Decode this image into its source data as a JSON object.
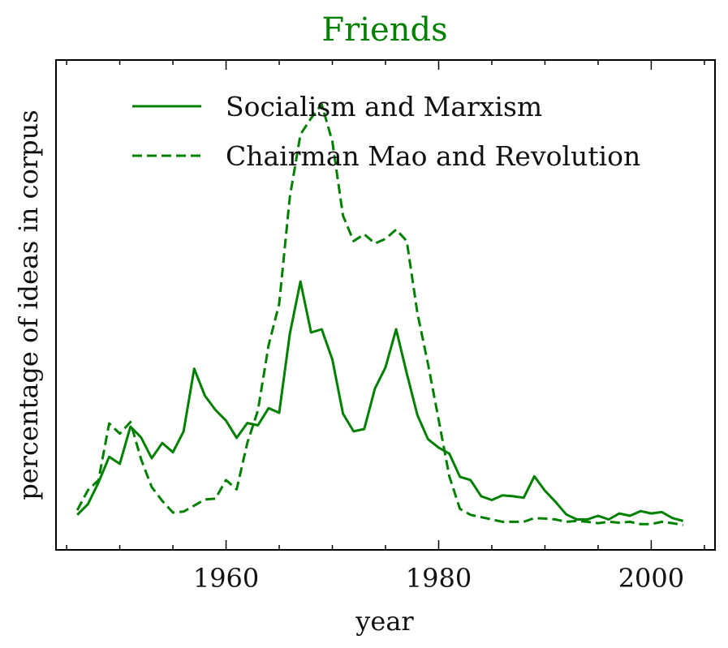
{
  "chart_data": {
    "type": "line",
    "title": "Friends",
    "xlabel": "year",
    "ylabel": "percentage of ideas in corpus",
    "xlim": [
      1944,
      2006
    ],
    "ylim": [
      0,
      1
    ],
    "xticks": [
      "1960",
      "1980",
      "2000"
    ],
    "xtick_values": [
      1960,
      1980,
      2000
    ],
    "grid": false,
    "legend_position": "top-center",
    "color": "#008000",
    "series": [
      {
        "name": "Socialism and Marxism",
        "style": "solid",
        "x": [
          1946,
          1947,
          1948,
          1949,
          1950,
          1951,
          1952,
          1953,
          1954,
          1955,
          1956,
          1957,
          1958,
          1959,
          1960,
          1961,
          1962,
          1963,
          1964,
          1965,
          1966,
          1967,
          1968,
          1969,
          1970,
          1971,
          1972,
          1973,
          1974,
          1975,
          1976,
          1977,
          1978,
          1979,
          1980,
          1981,
          1982,
          1983,
          1984,
          1985,
          1986,
          1987,
          1988,
          1989,
          1990,
          1991,
          1992,
          1993,
          1994,
          1995,
          1996,
          1997,
          1998,
          1999,
          2000,
          2001,
          2002,
          2003
        ],
        "values": [
          0.065,
          0.088,
          0.135,
          0.19,
          0.175,
          0.255,
          0.232,
          0.187,
          0.22,
          0.2,
          0.245,
          0.38,
          0.322,
          0.291,
          0.268,
          0.231,
          0.263,
          0.258,
          0.295,
          0.285,
          0.455,
          0.568,
          0.458,
          0.465,
          0.4,
          0.283,
          0.245,
          0.25,
          0.337,
          0.383,
          0.465,
          0.37,
          0.28,
          0.228,
          0.21,
          0.197,
          0.147,
          0.14,
          0.105,
          0.097,
          0.107,
          0.105,
          0.102,
          0.148,
          0.117,
          0.093,
          0.066,
          0.055,
          0.055,
          0.063,
          0.055,
          0.068,
          0.063,
          0.073,
          0.068,
          0.071,
          0.058,
          0.052
        ]
      },
      {
        "name": "Chairman Mao and Revolution",
        "style": "dashed",
        "x": [
          1946,
          1947,
          1948,
          1949,
          1950,
          1951,
          1952,
          1953,
          1954,
          1955,
          1956,
          1957,
          1958,
          1959,
          1960,
          1961,
          1962,
          1963,
          1964,
          1965,
          1966,
          1967,
          1968,
          1969,
          1970,
          1971,
          1972,
          1973,
          1974,
          1975,
          1976,
          1977,
          1978,
          1979,
          1980,
          1981,
          1982,
          1983,
          1984,
          1985,
          1986,
          1987,
          1988,
          1989,
          1990,
          1991,
          1992,
          1993,
          1994,
          1995,
          1996,
          1997,
          1998,
          1999,
          2000,
          2001,
          2002,
          2003
        ],
        "values": [
          0.075,
          0.118,
          0.14,
          0.262,
          0.24,
          0.265,
          0.185,
          0.125,
          0.095,
          0.07,
          0.072,
          0.085,
          0.098,
          0.1,
          0.14,
          0.12,
          0.22,
          0.29,
          0.43,
          0.52,
          0.75,
          0.885,
          0.92,
          0.95,
          0.87,
          0.71,
          0.655,
          0.67,
          0.65,
          0.66,
          0.68,
          0.655,
          0.5,
          0.39,
          0.27,
          0.148,
          0.078,
          0.065,
          0.06,
          0.055,
          0.05,
          0.05,
          0.05,
          0.058,
          0.057,
          0.055,
          0.05,
          0.052,
          0.05,
          0.047,
          0.05,
          0.048,
          0.05,
          0.045,
          0.045,
          0.05,
          0.047,
          0.043
        ]
      }
    ]
  }
}
